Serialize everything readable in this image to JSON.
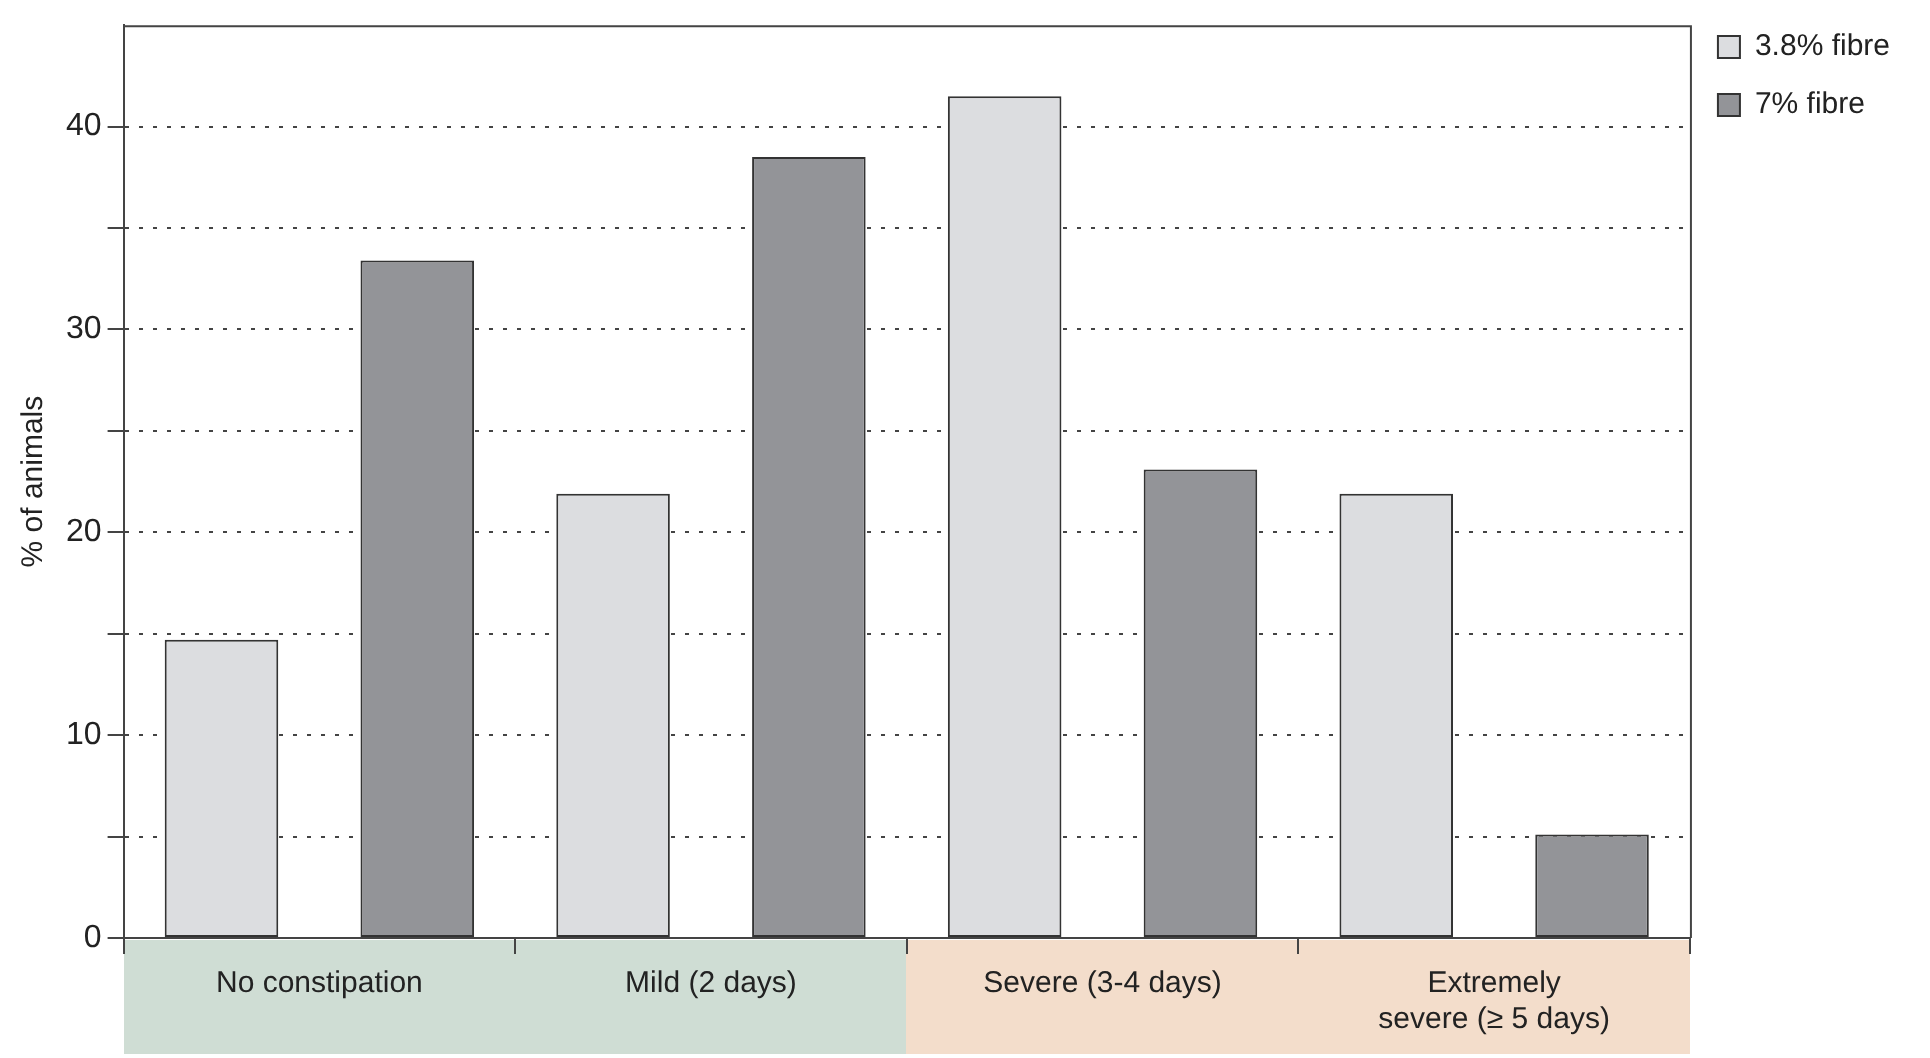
{
  "chart_data": {
    "type": "bar",
    "ylabel": "% of animals",
    "categories": [
      "No constipation",
      "Mild (2 days)",
      "Severe (3-4 days)",
      "Extremely severe (≥ 5 days)"
    ],
    "series": [
      {
        "name": "3.8% fibre",
        "color": "#dcdde0",
        "values": [
          14.7,
          21.9,
          41.5,
          21.9
        ]
      },
      {
        "name": "7% fibre",
        "color": "#939498",
        "values": [
          33.4,
          38.5,
          23.1,
          5.1
        ]
      }
    ],
    "ylim": [
      0,
      45
    ],
    "yticks": [
      0,
      {
        "value": 5,
        "label": null
      },
      10,
      {
        "value": 15,
        "label": null
      },
      20,
      {
        "value": 25,
        "label": null
      },
      30,
      {
        "value": 35,
        "label": null
      },
      40
    ],
    "grid": "y",
    "legend": "top right"
  }
}
